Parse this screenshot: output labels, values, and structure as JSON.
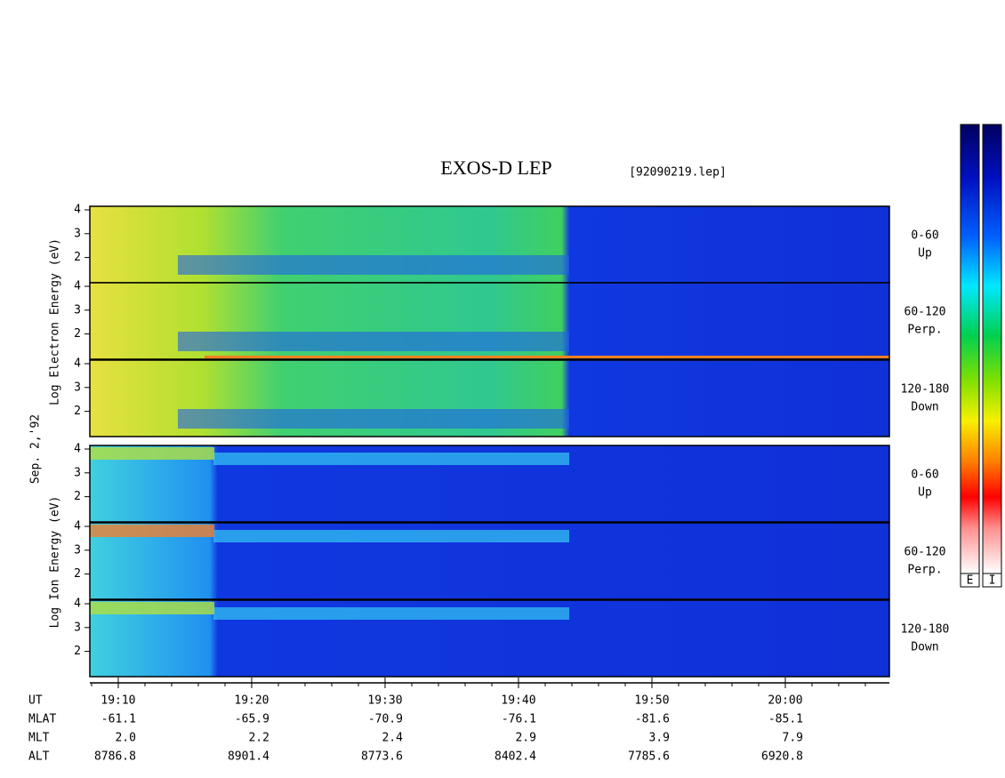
{
  "chart_data": {
    "type": "spectrogram",
    "title": "EXOS-D LEP",
    "subtitle": "[92090219.lep]",
    "date_label": "Sep. 2,'92",
    "electron_ylabel": "Log Electron Energy (eV)",
    "ion_ylabel": "Log Ion Energy (eV)",
    "panels": [
      {
        "angle": "0-60",
        "direction": "Up",
        "ylim": [
          0.94,
          4.15
        ],
        "yticks": [
          2,
          3,
          4
        ]
      },
      {
        "angle": "60-120",
        "direction": "Perp.",
        "ylim": [
          0.94,
          4.15
        ],
        "yticks": [
          2,
          3,
          4
        ]
      },
      {
        "angle": "120-180",
        "direction": "Down",
        "ylim": [
          0.94,
          4.15
        ],
        "yticks": [
          2,
          3,
          4
        ]
      },
      {
        "angle": "0-60",
        "direction": "Up",
        "ylim": [
          0.94,
          4.15
        ],
        "yticks": [
          2,
          3,
          4
        ]
      },
      {
        "angle": "60-120",
        "direction": "Perp.",
        "ylim": [
          0.94,
          4.15
        ],
        "yticks": [
          2,
          3,
          4
        ]
      },
      {
        "angle": "120-180",
        "direction": "Down",
        "ylim": [
          0.94,
          4.15
        ],
        "yticks": [
          2,
          3,
          4
        ]
      }
    ],
    "xlim": [
      7.87,
      67.8
    ],
    "xticks": [
      {
        "value": 10,
        "label": "19:10"
      },
      {
        "value": 20,
        "label": "19:20"
      },
      {
        "value": 30,
        "label": "19:30"
      },
      {
        "value": 40,
        "label": "19:40"
      },
      {
        "value": 50,
        "label": "19:50"
      },
      {
        "value": 60,
        "label": "20:00"
      }
    ],
    "ephemeris": [
      {
        "name": "UT"
      },
      {
        "name": "MLAT",
        "values": [
          "-61.1",
          "-65.9",
          "-70.9",
          "-76.1",
          "-81.6",
          "-85.1"
        ]
      },
      {
        "name": "MLT",
        "values": [
          "2.0",
          "2.2",
          "2.4",
          "2.9",
          "3.9",
          "7.9"
        ]
      },
      {
        "name": "ALT",
        "values": [
          "8786.8",
          "8901.4",
          "8773.6",
          "8402.4",
          "7785.6",
          "6920.8"
        ]
      }
    ],
    "colorbars": [
      "E",
      "I"
    ]
  }
}
